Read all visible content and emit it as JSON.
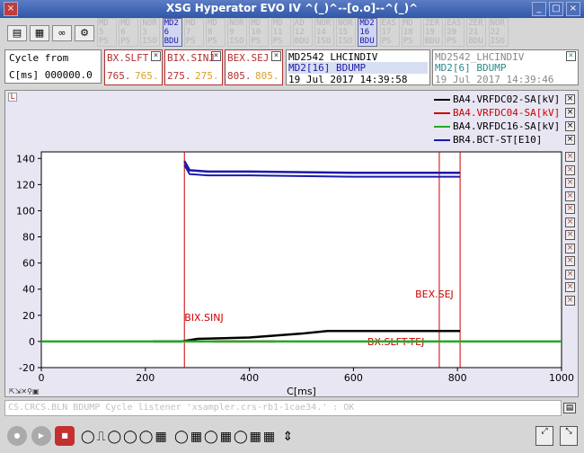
{
  "window": {
    "title": "XSG Hyperator EVO IV  ^(_)^--[o.o]--^(_)^",
    "close_label": "x",
    "min_label": "_",
    "max_label": "□",
    "x_label": "×"
  },
  "tabs": [
    {
      "label": "MD 5 PS",
      "active": false
    },
    {
      "label": "MD 6 PS",
      "active": false
    },
    {
      "label": "NOR 3 ISO",
      "active": false
    },
    {
      "label": "MD2 6 BDU",
      "active": true
    },
    {
      "label": "MD 7 PS",
      "active": false
    },
    {
      "label": "MD 8 PS",
      "active": false
    },
    {
      "label": "NOR 9 ISO",
      "active": false
    },
    {
      "label": "MD 10 PS",
      "active": false
    },
    {
      "label": "MD 11 PS",
      "active": false
    },
    {
      "label": "AD 12 BDU",
      "active": false
    },
    {
      "label": "NOR 14 ISO",
      "active": false
    },
    {
      "label": "NOR 15 ISO",
      "active": false
    },
    {
      "label": "MD2 16 BDU",
      "active": true
    },
    {
      "label": "EAS 17 PS",
      "active": false
    },
    {
      "label": "MD 18 PS",
      "active": false
    },
    {
      "label": "ZER 19 BDU",
      "active": false
    },
    {
      "label": "EAS 20 PS",
      "active": false
    },
    {
      "label": "ZER 21 BDU",
      "active": false
    },
    {
      "label": "NOR 22 ISO",
      "active": false
    }
  ],
  "cycle": {
    "label": "Cycle from",
    "value": "C[ms] 000000.0"
  },
  "signals": [
    {
      "name": "BX.SLFT",
      "v1": "765.",
      "v2": "765."
    },
    {
      "name": "BIX.SINJ",
      "v1": "275.",
      "v2": "275."
    },
    {
      "name": "BEX.SEJ",
      "v1": "805.",
      "v2": "805."
    }
  ],
  "context_left": {
    "line1": "MD2542_LHCINDIV",
    "line2": "MD2[16] BDUMP",
    "line3": "19 Jul 2017 14:39:58"
  },
  "context_right": {
    "line1": "MD2542_LHCINDIV",
    "line2": "MD2[6] BDUMP",
    "line3": "19 Jul 2017 14:39:46"
  },
  "panel_tag": "L",
  "legend": [
    {
      "label": "BA4.VRFDC02-SA[kV]",
      "color": "#000000"
    },
    {
      "label": "BA4.VRFDC04-SA[kV]",
      "color": "#cc0000"
    },
    {
      "label": "BA4.VRFDC16-SA[kV]",
      "color": "#22aa22"
    },
    {
      "label": "BR4.BCT-ST[E10]",
      "color": "#1a1aaa"
    }
  ],
  "status_text": "CS.CRCS.BLN BDUMP Cycle listener 'xsampler.crs-rb1-1cae34.' : OK",
  "chart_data": {
    "type": "line",
    "xlabel": "C[ms]",
    "xlim": [
      0,
      1000
    ],
    "ylim": [
      -20,
      145
    ],
    "x_ticks": [
      "0",
      "200",
      "400",
      "600",
      "800",
      "1000"
    ],
    "y_ticks": [
      "-20",
      "0",
      "20",
      "40",
      "60",
      "80",
      "100",
      "120",
      "140"
    ],
    "markers": [
      {
        "label": "BIX.SINJ",
        "x": 275
      },
      {
        "label": "BX.SLFT-TEJ",
        "x": 765
      },
      {
        "label": "BEX.SEJ",
        "x": 805
      }
    ],
    "series": [
      {
        "name": "BA4.VRFDC02-SA[kV]",
        "color": "#000000",
        "x": [
          215,
          270,
          300,
          400,
          500,
          550,
          700,
          805
        ],
        "y": [
          0,
          0,
          2,
          3,
          6,
          8,
          8,
          8
        ]
      },
      {
        "name": "BA4.VRFDC04-SA[kV]",
        "color": "#cc0000",
        "x": [
          330,
          400,
          420,
          450
        ],
        "y": [
          0,
          0,
          0,
          0
        ]
      },
      {
        "name": "BA4.VRFDC16-SA[kV]",
        "color": "#22aa22",
        "x": [
          0,
          270,
          805,
          1000
        ],
        "y": [
          0,
          0,
          0,
          0
        ]
      },
      {
        "name": "BR4.BCT-ST[E10]",
        "color": "#1a1aaa",
        "x": [
          275,
          285,
          320,
          400,
          600,
          805
        ],
        "y": [
          138,
          131,
          130,
          130,
          129,
          129
        ]
      }
    ]
  }
}
